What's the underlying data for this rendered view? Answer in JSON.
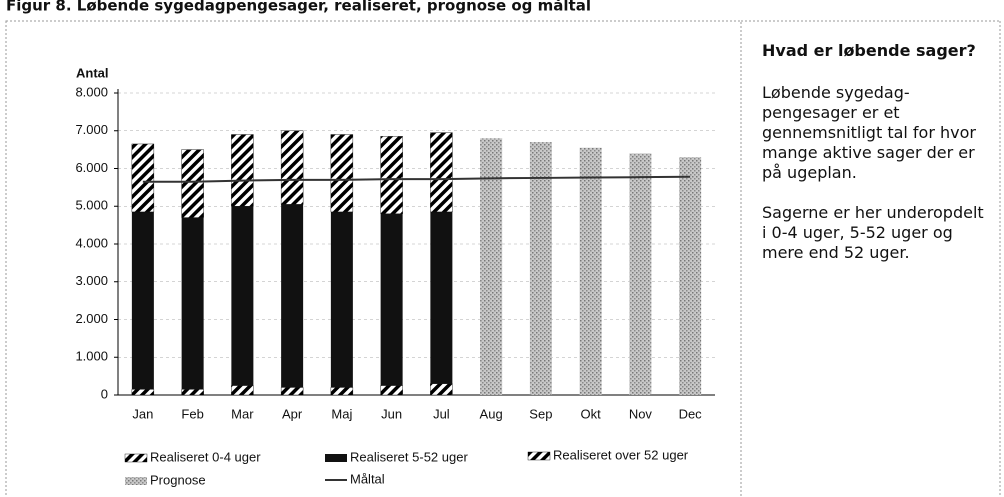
{
  "chart_data": {
    "type": "bar",
    "stacked": true,
    "title": "Figur 8. Løbende sygedagpengesager, realiseret, prognose og måltal",
    "ylabel": "Antal",
    "categories": [
      "Jan",
      "Feb",
      "Mar",
      "Apr",
      "Maj",
      "Jun",
      "Jul",
      "Aug",
      "Sep",
      "Okt",
      "Nov",
      "Dec"
    ],
    "series": [
      {
        "name": "Realiseret 0-4 uger",
        "type": "bar",
        "color": "#000000",
        "hatch": true,
        "values": [
          150,
          150,
          250,
          200,
          200,
          250,
          300,
          null,
          null,
          null,
          null,
          null
        ]
      },
      {
        "name": "Realiseret 5-52 uger",
        "type": "bar",
        "color": "#111111",
        "hatch": false,
        "values": [
          4700,
          4550,
          4750,
          4850,
          4650,
          4550,
          4550,
          null,
          null,
          null,
          null,
          null
        ]
      },
      {
        "name": "Realiseret over 52 uger",
        "type": "bar",
        "color": "#000000",
        "hatch": true,
        "values": [
          1800,
          1800,
          1900,
          1950,
          2050,
          2050,
          2100,
          null,
          null,
          null,
          null,
          null
        ]
      },
      {
        "name": "Prognose",
        "type": "bar",
        "color": "#9a9a9a",
        "dotted": true,
        "values": [
          null,
          null,
          null,
          null,
          null,
          null,
          null,
          6800,
          6700,
          6550,
          6400,
          6300
        ]
      },
      {
        "name": "Måltal",
        "type": "line",
        "color": "#333333",
        "values": [
          5650,
          5650,
          5680,
          5700,
          5700,
          5720,
          5720,
          5740,
          5750,
          5760,
          5770,
          5780
        ]
      }
    ],
    "ylim": [
      0,
      8000
    ],
    "yticks": [
      0,
      {
        "value": 1000,
        "label": "1.000"
      },
      {
        "value": 2000,
        "label": "2.000"
      },
      {
        "value": 3000,
        "label": "3.000"
      },
      {
        "value": 4000,
        "label": "4.000"
      },
      {
        "value": 5000,
        "label": "5.000"
      },
      {
        "value": 6000,
        "label": "6.000"
      },
      {
        "value": 7000,
        "label": "7.000"
      },
      {
        "value": 8000,
        "label": "8.000"
      }
    ],
    "grid": true,
    "legend": "bottom"
  },
  "sidebar": {
    "title": "Hvad er løbende sager?",
    "paragraphs": [
      "Løbende sygedag-pengesager er et gennemsnitligt tal for hvor mange aktive sager der er på ugeplan.",
      "Sagerne er her underopdelt i 0-4 uger, 5-52 uger og mere end 52 uger."
    ]
  }
}
